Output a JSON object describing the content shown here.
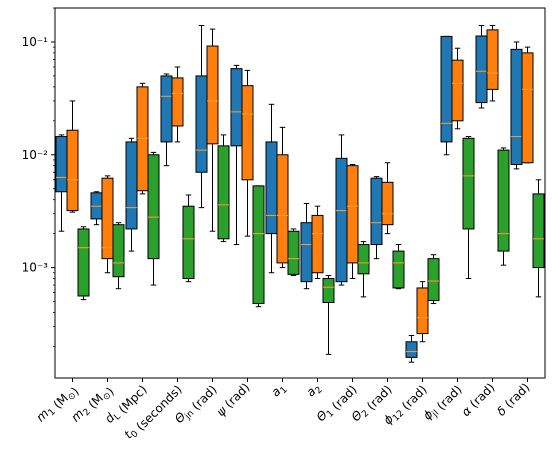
{
  "chart_data": {
    "type": "box",
    "yscale": "log",
    "ylim": [
      0.000105,
      0.2
    ],
    "y_tick_labels": [
      "10⁻³",
      "10⁻²",
      "10⁻¹"
    ],
    "y_ticks": [
      0.001,
      0.01,
      0.1
    ],
    "categories": [
      "m₁ (M⊙)",
      "m₂ (M⊙)",
      "d_L (Mpc)",
      "t₀ (seconds)",
      "Θ_jn (rad)",
      "ψ (rad)",
      "a₁",
      "a₂",
      "Θ₁ (rad)",
      "Θ₂ (rad)",
      "ϕ₁₂ (rad)",
      "ϕ_jl (rad)",
      "α (rad)",
      "δ (rad)"
    ],
    "series": [
      {
        "color": "#1f77b4",
        "boxes": [
          {
            "whislo": 0.0021,
            "q1": 0.0047,
            "med": 0.0063,
            "q3": 0.0145,
            "whishi": 0.015
          },
          {
            "whislo": 0.0024,
            "q1": 0.0027,
            "med": 0.0035,
            "q3": 0.0046,
            "whishi": 0.0047
          },
          {
            "whislo": 0.0014,
            "q1": 0.0022,
            "med": 0.0034,
            "q3": 0.013,
            "whishi": 0.014
          },
          {
            "whislo": 0.008,
            "q1": 0.013,
            "med": 0.033,
            "q3": 0.05,
            "whishi": 0.052
          },
          {
            "whislo": 0.0034,
            "q1": 0.007,
            "med": 0.011,
            "q3": 0.05,
            "whishi": 0.14
          },
          {
            "whislo": 0.0016,
            "q1": 0.012,
            "med": 0.024,
            "q3": 0.058,
            "whishi": 0.062
          },
          {
            "whislo": 0.0009,
            "q1": 0.002,
            "med": 0.0029,
            "q3": 0.013,
            "whishi": 0.028
          },
          {
            "whislo": 0.00065,
            "q1": 0.00075,
            "med": 0.0016,
            "q3": 0.0025,
            "whishi": 0.0037
          },
          {
            "whislo": 0.0007,
            "q1": 0.00075,
            "med": 0.0032,
            "q3": 0.0093,
            "whishi": 0.015
          },
          {
            "whislo": 0.0012,
            "q1": 0.0016,
            "med": 0.0025,
            "q3": 0.0062,
            "whishi": 0.0064
          },
          {
            "whislo": 0.000145,
            "q1": 0.00016,
            "med": 0.00018,
            "q3": 0.00022,
            "whishi": 0.00025
          },
          {
            "whislo": 0.01,
            "q1": 0.013,
            "med": 0.019,
            "q3": 0.112,
            "whishi": 0.112
          },
          {
            "whislo": 0.026,
            "q1": 0.029,
            "med": 0.055,
            "q3": 0.113,
            "whishi": 0.14
          },
          {
            "whislo": 0.0075,
            "q1": 0.0082,
            "med": 0.0145,
            "q3": 0.086,
            "whishi": 0.1
          }
        ]
      },
      {
        "color": "#ff7f0e",
        "boxes": [
          {
            "whislo": 0.0031,
            "q1": 0.0032,
            "med": 0.006,
            "q3": 0.0165,
            "whishi": 0.03
          },
          {
            "whislo": 0.0009,
            "q1": 0.0012,
            "med": 0.0015,
            "q3": 0.0062,
            "whishi": 0.0065
          },
          {
            "whislo": 0.0045,
            "q1": 0.0048,
            "med": 0.014,
            "q3": 0.04,
            "whishi": 0.043
          },
          {
            "whislo": 0.013,
            "q1": 0.018,
            "med": 0.035,
            "q3": 0.048,
            "whishi": 0.06
          },
          {
            "whislo": 0.0021,
            "q1": 0.0125,
            "med": 0.03,
            "q3": 0.092,
            "whishi": 0.13
          },
          {
            "whislo": 0.0019,
            "q1": 0.006,
            "med": 0.023,
            "q3": 0.041,
            "whishi": 0.056
          },
          {
            "whislo": 0.001,
            "q1": 0.0011,
            "med": 0.0029,
            "q3": 0.01,
            "whishi": 0.0175
          },
          {
            "whislo": 0.0008,
            "q1": 0.0009,
            "med": 0.002,
            "q3": 0.0029,
            "whishi": 0.0035
          },
          {
            "whislo": 0.0008,
            "q1": 0.0011,
            "med": 0.0035,
            "q3": 0.008,
            "whishi": 0.0082
          },
          {
            "whislo": 0.002,
            "q1": 0.0024,
            "med": 0.003,
            "q3": 0.0057,
            "whishi": 0.0085
          },
          {
            "whislo": 0.00022,
            "q1": 0.00026,
            "med": 0.00036,
            "q3": 0.00066,
            "whishi": 0.00075
          },
          {
            "whislo": 0.017,
            "q1": 0.02,
            "med": 0.043,
            "q3": 0.069,
            "whishi": 0.088
          },
          {
            "whislo": 0.03,
            "q1": 0.038,
            "med": 0.053,
            "q3": 0.128,
            "whishi": 0.14
          },
          {
            "whislo": 0.0085,
            "q1": 0.0085,
            "med": 0.038,
            "q3": 0.08,
            "whishi": 0.09
          }
        ]
      },
      {
        "color": "#2ca02c",
        "boxes": [
          {
            "whislo": 0.00052,
            "q1": 0.00056,
            "med": 0.0015,
            "q3": 0.0022,
            "whishi": 0.0023
          },
          {
            "whislo": 0.00065,
            "q1": 0.00083,
            "med": 0.0011,
            "q3": 0.0024,
            "whishi": 0.0025
          },
          {
            "whislo": 0.0007,
            "q1": 0.0012,
            "med": 0.0028,
            "q3": 0.01,
            "whishi": 0.0105
          },
          {
            "whislo": 0.00075,
            "q1": 0.0008,
            "med": 0.0018,
            "q3": 0.0035,
            "whishi": 0.0044
          },
          {
            "whislo": 0.0017,
            "q1": 0.0018,
            "med": 0.0036,
            "q3": 0.012,
            "whishi": 0.015
          },
          {
            "whislo": 0.00045,
            "q1": 0.00048,
            "med": 0.002,
            "q3": 0.0053,
            "whishi": 0.0053
          },
          {
            "whislo": 0.00085,
            "q1": 0.00087,
            "med": 0.0012,
            "q3": 0.0021,
            "whishi": 0.0022
          },
          {
            "whislo": 0.00017,
            "q1": 0.00049,
            "med": 0.00067,
            "q3": 0.0008,
            "whishi": 0.00085
          },
          {
            "whislo": 0.00055,
            "q1": 0.00088,
            "med": 0.0011,
            "q3": 0.0016,
            "whishi": 0.0017
          },
          {
            "whislo": 0.00065,
            "q1": 0.00066,
            "med": 0.0011,
            "q3": 0.0014,
            "whishi": 0.0016
          },
          {
            "whislo": 0.00048,
            "q1": 0.00051,
            "med": 0.00076,
            "q3": 0.0012,
            "whishi": 0.0013
          },
          {
            "whislo": 0.0008,
            "q1": 0.0022,
            "med": 0.0065,
            "q3": 0.014,
            "whishi": 0.0145
          },
          {
            "whislo": 0.00105,
            "q1": 0.0014,
            "med": 0.002,
            "q3": 0.011,
            "whishi": 0.0115
          },
          {
            "whislo": 0.00055,
            "q1": 0.001,
            "med": 0.0018,
            "q3": 0.0045,
            "whishi": 0.006
          }
        ]
      }
    ]
  }
}
